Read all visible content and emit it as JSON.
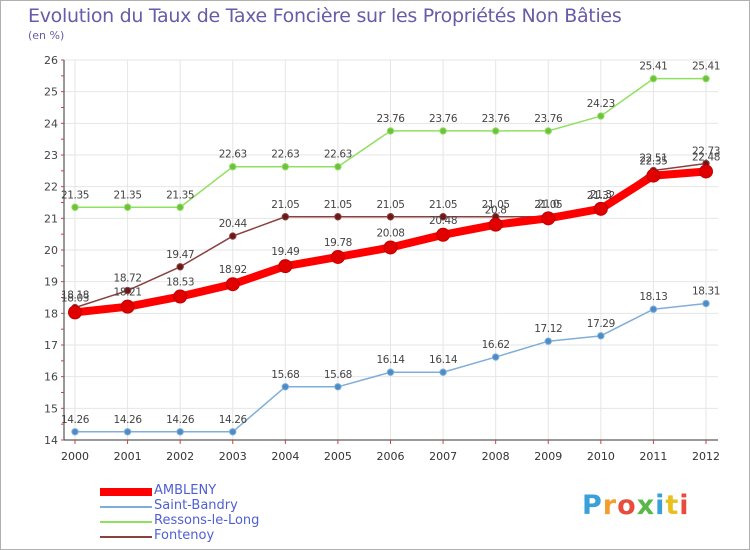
{
  "title": "Evolution du Taux de Taxe Foncière sur les Propriétés Non Bâties",
  "subtitle": "(en %)",
  "logo": {
    "letters": [
      "P",
      "r",
      "o",
      "x",
      "i",
      "t",
      "i"
    ],
    "colors": [
      "#3aa0d8",
      "#f0a030",
      "#e84c3c",
      "#58b848",
      "#3aa0d8",
      "#e8c020",
      "#e84c3c"
    ]
  },
  "chart_data": {
    "type": "line",
    "x": [
      "2000",
      "2001",
      "2002",
      "2003",
      "2004",
      "2005",
      "2006",
      "2007",
      "2008",
      "2009",
      "2010",
      "2011",
      "2012"
    ],
    "ylim": [
      14,
      26
    ],
    "yticks": [
      "14",
      "15",
      "16",
      "17",
      "18",
      "19",
      "20",
      "21",
      "22",
      "23",
      "24",
      "25",
      "26"
    ],
    "grid": true,
    "legend_placement": "bottom-left",
    "series": [
      {
        "name": "Ressons-le-Long",
        "color": "#90e060",
        "marker": "#70c040",
        "width": 1.5,
        "values": [
          21.35,
          21.35,
          21.35,
          22.63,
          22.63,
          22.63,
          23.76,
          23.76,
          23.76,
          23.76,
          24.23,
          25.41,
          25.41
        ],
        "labels": [
          "21.35",
          "21.35",
          "21.35",
          "22.63",
          "22.63",
          "22.63",
          "23.76",
          "23.76",
          "23.76",
          "23.76",
          "24.23",
          "25.41",
          "25.41"
        ]
      },
      {
        "name": "Fontenoy",
        "color": "#8b4040",
        "marker": "#6a1818",
        "width": 1.5,
        "values": [
          18.18,
          18.72,
          19.47,
          20.44,
          21.05,
          21.05,
          21.05,
          21.05,
          21.05,
          21.05,
          21.32,
          22.51,
          22.73
        ],
        "labels": [
          "18.18",
          "18.72",
          "19.47",
          "20.44",
          "21.05",
          "21.05",
          "21.05",
          "21.05",
          "21.05",
          "21.05",
          "21.32",
          "22.51",
          "22.73"
        ]
      },
      {
        "name": "Saint-Bandry",
        "color": "#80aed8",
        "marker": "#4a8cc8",
        "width": 1.5,
        "values": [
          14.26,
          14.26,
          14.26,
          14.26,
          15.68,
          15.68,
          16.14,
          16.14,
          16.62,
          17.12,
          17.29,
          18.13,
          18.31
        ],
        "labels": [
          "14.26",
          "14.26",
          "14.26",
          "14.26",
          "15.68",
          "15.68",
          "16.14",
          "16.14",
          "16.62",
          "17.12",
          "17.29",
          "18.13",
          "18.31"
        ]
      },
      {
        "name": "AMBLENY",
        "color": "#ff0000",
        "marker": "#e00000",
        "width": 8,
        "values": [
          18.03,
          18.21,
          18.53,
          18.92,
          19.49,
          19.78,
          20.08,
          20.48,
          20.8,
          21.0,
          21.3,
          22.35,
          22.48
        ],
        "labels": [
          "18.03",
          "18.21",
          "18.53",
          "18.92",
          "19.49",
          "19.78",
          "20.08",
          "20.48",
          "20.8",
          "21.0",
          "21.3",
          "22.35",
          "22.48"
        ]
      }
    ],
    "legend_order": [
      "AMBLENY",
      "Saint-Bandry",
      "Ressons-le-Long",
      "Fontenoy"
    ]
  }
}
